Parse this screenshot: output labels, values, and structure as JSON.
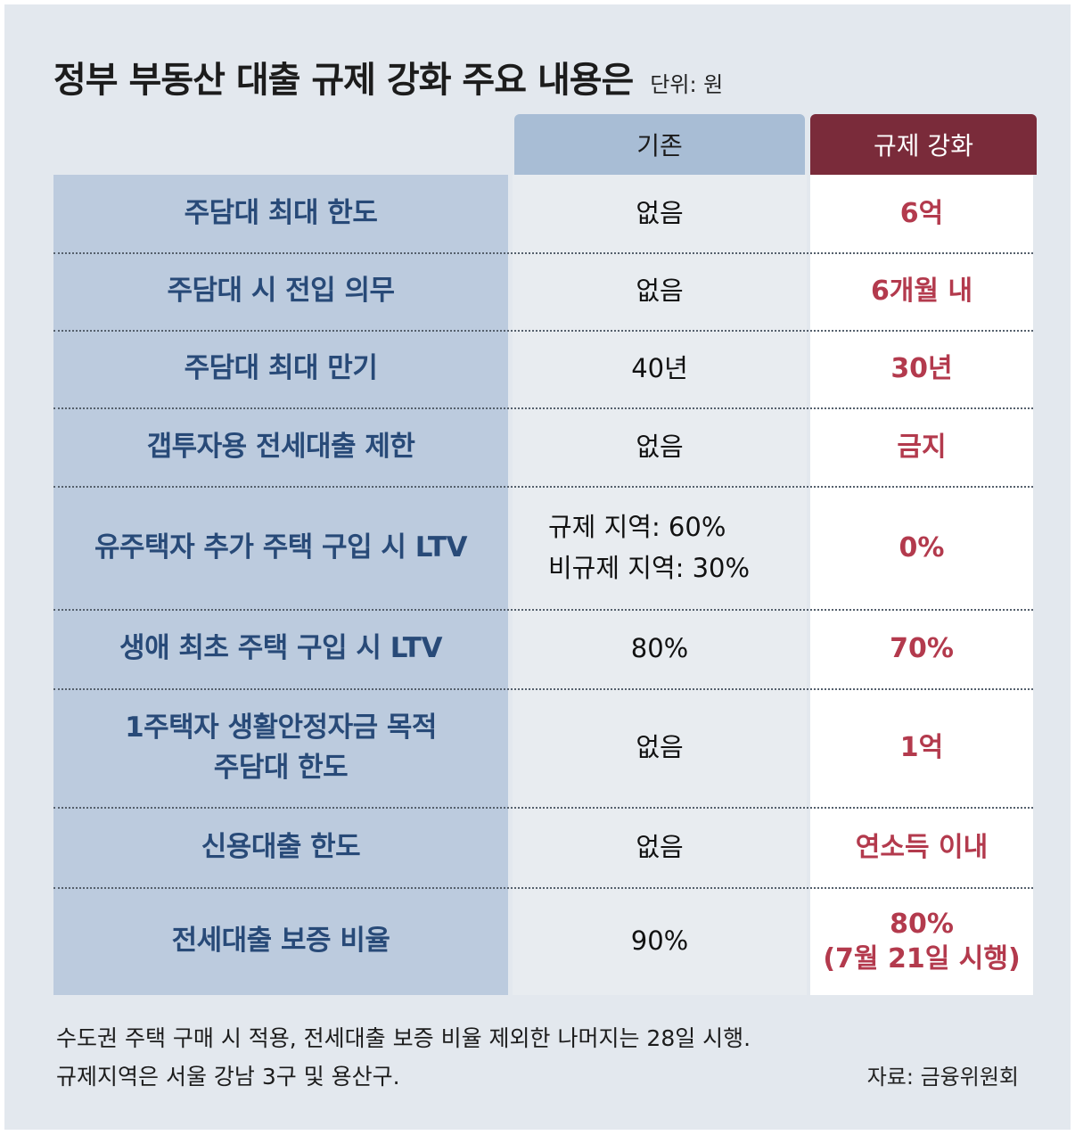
{
  "title": "정부 부동산 대출 규제 강화 주요 내용은",
  "unit": "단위: 원",
  "headers": {
    "existing": "기존",
    "strengthened": "규제 강화"
  },
  "rows": [
    {
      "label": [
        "주담대 최대 한도"
      ],
      "existing": [
        "없음"
      ],
      "strengthened": [
        "6억"
      ]
    },
    {
      "label": [
        "주담대 시 전입 의무"
      ],
      "existing": [
        "없음"
      ],
      "strengthened": [
        "6개월 내"
      ]
    },
    {
      "label": [
        "주담대 최대 만기"
      ],
      "existing": [
        "40년"
      ],
      "strengthened": [
        "30년"
      ]
    },
    {
      "label": [
        "갭투자용 전세대출 제한"
      ],
      "existing": [
        "없음"
      ],
      "strengthened": [
        "금지"
      ]
    },
    {
      "label": [
        "유주택자 추가 주택 구입 시 LTV"
      ],
      "existing": [
        "규제 지역: 60%",
        "비규제 지역: 30%"
      ],
      "strengthened": [
        "0%"
      ]
    },
    {
      "label": [
        "생애 최초 주택 구입 시 LTV"
      ],
      "existing": [
        "80%"
      ],
      "strengthened": [
        "70%"
      ]
    },
    {
      "label": [
        "1주택자 생활안정자금 목적",
        "주담대 한도"
      ],
      "existing": [
        "없음"
      ],
      "strengthened": [
        "1억"
      ]
    },
    {
      "label": [
        "신용대출 한도"
      ],
      "existing": [
        "없음"
      ],
      "strengthened": [
        "연소득 이내"
      ]
    },
    {
      "label": [
        "전세대출 보증 비율"
      ],
      "existing": [
        "90%"
      ],
      "strengthened": [
        "80%",
        "(7월 21일 시행)"
      ]
    }
  ],
  "notes": [
    "수도권 주택 구매 시 적용, 전세대출 보증 비율 제외한 나머지는 28일 시행.",
    "규제지역은 서울 강남 3구 및 용산구."
  ],
  "source": "자료: 금융위원회",
  "colors": {
    "background": "#e3e8ee",
    "label_panel": "#bccbde",
    "existing_header": "#a8bdd5",
    "strengthened_header": "#7a2b3a",
    "label_text": "#284a78",
    "strengthened_text": "#b33a4d"
  }
}
